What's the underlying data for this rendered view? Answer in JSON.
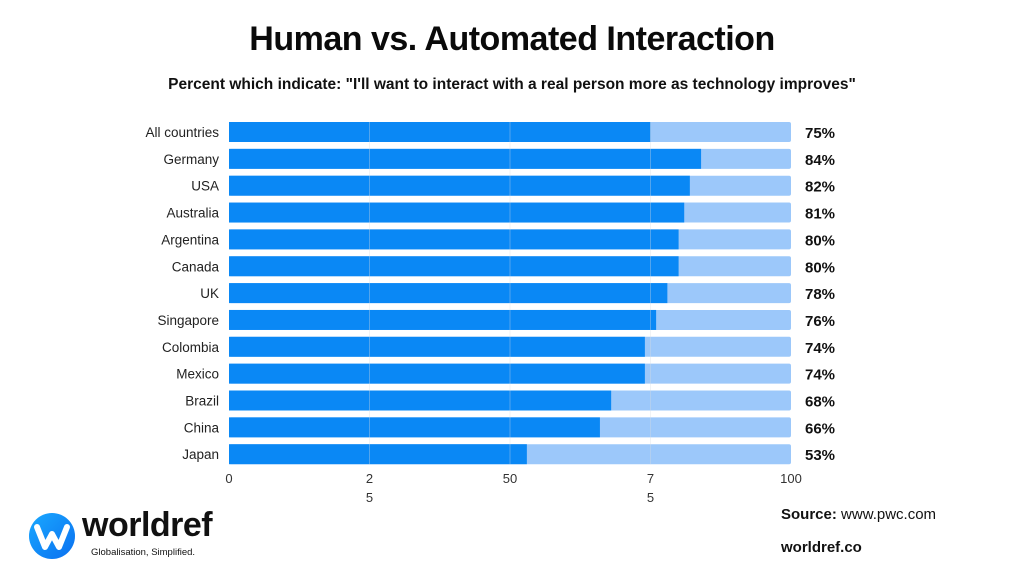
{
  "header": {
    "title": "Human vs. Automated Interaction",
    "subtitle": "Percent which indicate: \"I'll want to interact with a real person more as technology improves\""
  },
  "chart_data": {
    "type": "bar",
    "orientation": "horizontal",
    "stacked_remainder_to": 100,
    "categories": [
      "All countries",
      "Germany",
      "USA",
      "Australia",
      "Argentina",
      "Canada",
      "UK",
      "Singapore",
      "Colombia",
      "Mexico",
      "Brazil",
      "China",
      "Japan"
    ],
    "values": [
      75,
      84,
      82,
      81,
      80,
      80,
      78,
      76,
      74,
      74,
      68,
      66,
      53
    ],
    "value_labels": [
      "75%",
      "84%",
      "82%",
      "81%",
      "80%",
      "80%",
      "78%",
      "76%",
      "74%",
      "74%",
      "68%",
      "66%",
      "53%"
    ],
    "xlim": [
      0,
      100
    ],
    "x_ticks": [
      {
        "value": 0,
        "line1": "0",
        "line2": ""
      },
      {
        "value": 25,
        "line1": "2",
        "line2": "5"
      },
      {
        "value": 50,
        "line1": "50",
        "line2": ""
      },
      {
        "value": 75,
        "line1": "7",
        "line2": "5"
      },
      {
        "value": 100,
        "line1": "100",
        "line2": ""
      }
    ],
    "grid": true,
    "colors": {
      "value": "#0a88f5",
      "remainder": "#9cc8fa",
      "grid": "#d9dde3"
    }
  },
  "footer": {
    "source_label": "Source:",
    "source_value": "www.pwc.com",
    "site": "worldref.co"
  },
  "logo": {
    "name": "worldref",
    "tagline": "Globalisation, Simplified.",
    "color": "#1e90ff"
  }
}
